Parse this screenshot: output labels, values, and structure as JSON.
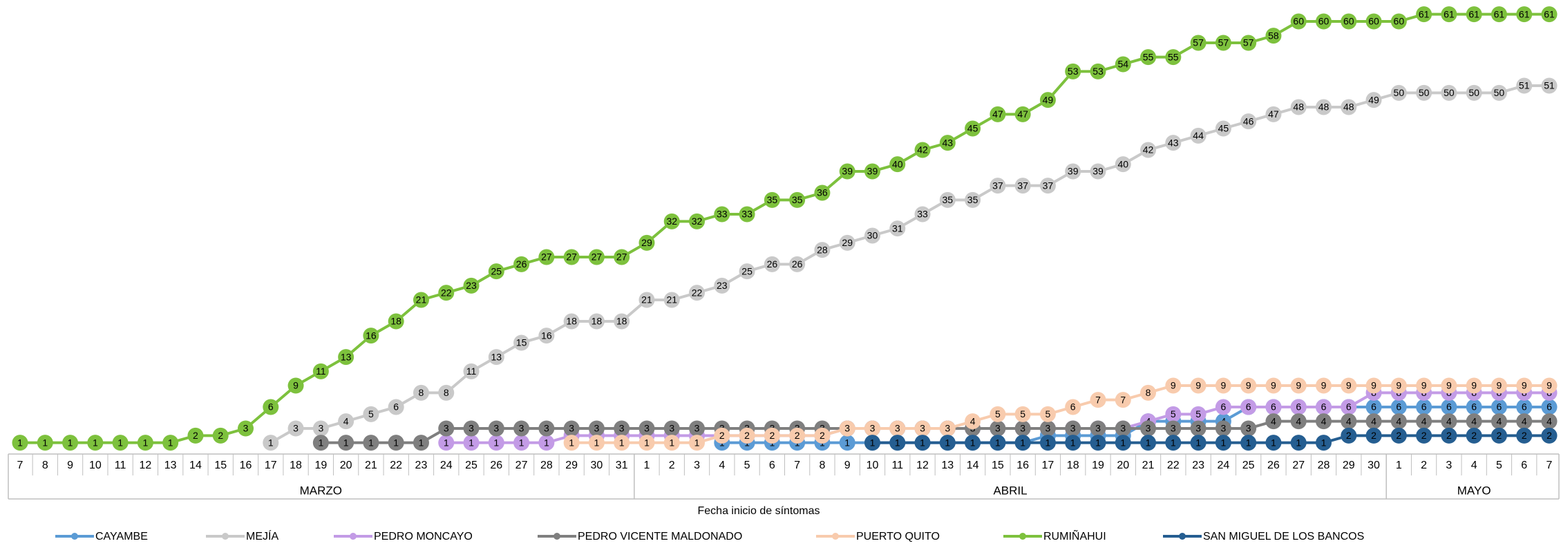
{
  "chart_data": {
    "type": "line",
    "x_label": "Fecha inicio de síntomas",
    "categories": [
      "7",
      "8",
      "9",
      "10",
      "11",
      "12",
      "13",
      "14",
      "15",
      "16",
      "17",
      "18",
      "19",
      "20",
      "21",
      "22",
      "23",
      "24",
      "25",
      "26",
      "27",
      "28",
      "29",
      "30",
      "31",
      "1",
      "2",
      "3",
      "4",
      "5",
      "6",
      "7",
      "8",
      "9",
      "10",
      "11",
      "12",
      "13",
      "14",
      "15",
      "16",
      "17",
      "18",
      "19",
      "20",
      "21",
      "22",
      "23",
      "24",
      "25",
      "26",
      "27",
      "28",
      "29",
      "30",
      "1",
      "2",
      "3",
      "4",
      "5",
      "6",
      "7"
    ],
    "groups": [
      "MARZO",
      "ABRIL",
      "MAYO"
    ],
    "ylim": [
      0,
      63
    ],
    "series": [
      {
        "name": "CAYAMBE",
        "color": "#5b9bd5",
        "values": [
          null,
          null,
          null,
          null,
          null,
          null,
          null,
          null,
          null,
          null,
          null,
          null,
          null,
          null,
          null,
          null,
          null,
          null,
          null,
          null,
          null,
          null,
          null,
          null,
          null,
          null,
          null,
          null,
          1,
          1,
          1,
          1,
          1,
          1,
          1,
          1,
          1,
          1,
          1,
          1,
          1,
          2,
          2,
          2,
          2,
          4,
          4,
          4,
          4,
          6,
          6,
          6,
          6,
          6,
          6,
          6,
          6,
          6,
          6,
          6,
          6,
          6
        ]
      },
      {
        "name": "MEJÍA",
        "color": "#c9c9c9",
        "values": [
          null,
          null,
          null,
          null,
          null,
          null,
          null,
          null,
          null,
          null,
          1,
          3,
          3,
          4,
          5,
          6,
          8,
          8,
          11,
          13,
          15,
          16,
          18,
          18,
          18,
          21,
          21,
          22,
          23,
          25,
          26,
          26,
          28,
          29,
          30,
          31,
          33,
          35,
          35,
          37,
          37,
          37,
          39,
          39,
          40,
          42,
          43,
          44,
          45,
          46,
          47,
          48,
          48,
          48,
          49,
          50,
          50,
          50,
          50,
          50,
          51,
          51
        ]
      },
      {
        "name": "PEDRO MONCAYO",
        "color": "#c39be6",
        "values": [
          null,
          null,
          null,
          null,
          null,
          null,
          null,
          null,
          null,
          null,
          null,
          null,
          null,
          null,
          null,
          null,
          null,
          1,
          1,
          1,
          1,
          1,
          2,
          2,
          2,
          2,
          2,
          2,
          2,
          2,
          2,
          2,
          2,
          3,
          3,
          3,
          3,
          3,
          3,
          3,
          3,
          3,
          3,
          3,
          3,
          4,
          5,
          5,
          6,
          6,
          6,
          6,
          6,
          6,
          8,
          8,
          8,
          8,
          8,
          8,
          8,
          8
        ]
      },
      {
        "name": "PEDRO VICENTE MALDONADO",
        "color": "#7f7f7f",
        "values": [
          null,
          null,
          null,
          null,
          null,
          null,
          null,
          null,
          null,
          null,
          null,
          null,
          1,
          1,
          1,
          1,
          1,
          3,
          3,
          3,
          3,
          3,
          3,
          3,
          3,
          3,
          3,
          3,
          3,
          3,
          3,
          3,
          3,
          3,
          3,
          3,
          3,
          3,
          3,
          3,
          3,
          3,
          3,
          3,
          3,
          3,
          3,
          3,
          3,
          3,
          4,
          4,
          4,
          4,
          4,
          4,
          4,
          4,
          4,
          4,
          4,
          4
        ]
      },
      {
        "name": "PUERTO QUITO",
        "color": "#f8cbad",
        "values": [
          null,
          null,
          null,
          null,
          null,
          null,
          null,
          null,
          null,
          null,
          null,
          null,
          null,
          null,
          null,
          null,
          null,
          null,
          null,
          null,
          null,
          null,
          1,
          1,
          1,
          1,
          1,
          1,
          2,
          2,
          2,
          2,
          2,
          3,
          3,
          3,
          3,
          3,
          4,
          5,
          5,
          5,
          6,
          7,
          7,
          8,
          9,
          9,
          9,
          9,
          9,
          9,
          9,
          9,
          9,
          9,
          9,
          9,
          9,
          9,
          9,
          9
        ]
      },
      {
        "name": "RUMIÑAHUI",
        "color": "#7dc13d",
        "values": [
          1,
          1,
          1,
          1,
          1,
          1,
          1,
          2,
          2,
          3,
          6,
          9,
          11,
          13,
          16,
          18,
          21,
          22,
          23,
          25,
          26,
          27,
          27,
          27,
          27,
          29,
          32,
          32,
          33,
          33,
          35,
          35,
          36,
          39,
          39,
          40,
          42,
          43,
          45,
          47,
          47,
          49,
          53,
          53,
          54,
          55,
          55,
          57,
          57,
          57,
          58,
          60,
          60,
          60,
          60,
          60,
          61,
          61,
          61,
          61,
          61,
          61
        ]
      },
      {
        "name": "SAN MIGUEL DE LOS BANCOS",
        "color": "#255e91",
        "values": [
          null,
          null,
          null,
          null,
          null,
          null,
          null,
          null,
          null,
          null,
          null,
          null,
          null,
          null,
          null,
          null,
          null,
          null,
          null,
          null,
          null,
          null,
          null,
          null,
          null,
          null,
          null,
          null,
          null,
          null,
          null,
          null,
          null,
          null,
          1,
          1,
          1,
          1,
          1,
          1,
          1,
          1,
          1,
          1,
          1,
          1,
          1,
          1,
          1,
          1,
          1,
          1,
          1,
          2,
          2,
          2,
          2,
          2,
          2,
          2,
          2,
          2
        ]
      }
    ]
  }
}
